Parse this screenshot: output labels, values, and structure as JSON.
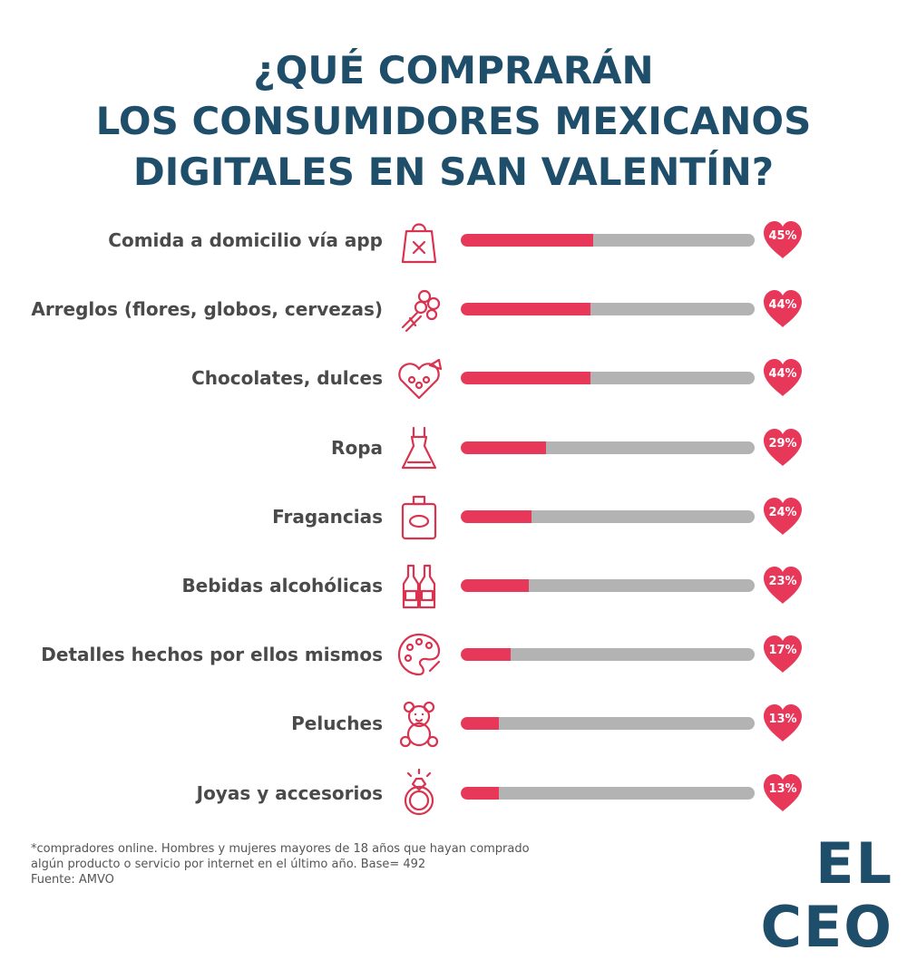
{
  "title_lines": [
    "¿QUÉ COMPRARÁN",
    "LOS CONSUMIDORES MEXICANOS",
    "DIGITALES EN SAN VALENTÍN?"
  ],
  "colors": {
    "title": "#1f4e6b",
    "bar_fill": "#e8385a",
    "bar_track": "#b3b3b3",
    "heart": "#e8385a",
    "icon": "#d9334f"
  },
  "chart_data": {
    "type": "bar",
    "orientation": "horizontal",
    "title": "¿QUÉ COMPRARÁN LOS CONSUMIDORES MEXICANOS DIGITALES EN SAN VALENTÍN?",
    "categories": [
      "Comida a domicilio vía app",
      "Arreglos (flores, globos, cervezas)",
      "Chocolates, dulces",
      "Ropa",
      "Fragancias",
      "Bebidas alcohólicas",
      "Detalles hechos por ellos mismos",
      "Peluches",
      "Joyas y accesorios"
    ],
    "values": [
      45,
      44,
      44,
      29,
      24,
      23,
      17,
      13,
      13
    ],
    "labels": [
      "45%",
      "44%",
      "44%",
      "29%",
      "24%",
      "23%",
      "17%",
      "13%",
      "13%"
    ],
    "icons": [
      "food-bag-icon",
      "flower-bouquet-icon",
      "chocolate-box-icon",
      "dress-icon",
      "perfume-icon",
      "bottles-icon",
      "paint-palette-icon",
      "teddy-bear-icon",
      "ring-icon"
    ],
    "xlim": [
      0,
      100
    ],
    "grid": false,
    "legend": "none"
  },
  "footnote": "*compradores online. Hombres y mujeres mayores de 18 años que hayan comprado algún producto o servicio por internet en el último año. Base= 492",
  "source": "Fuente: AMVO",
  "logo": "EL CEO"
}
